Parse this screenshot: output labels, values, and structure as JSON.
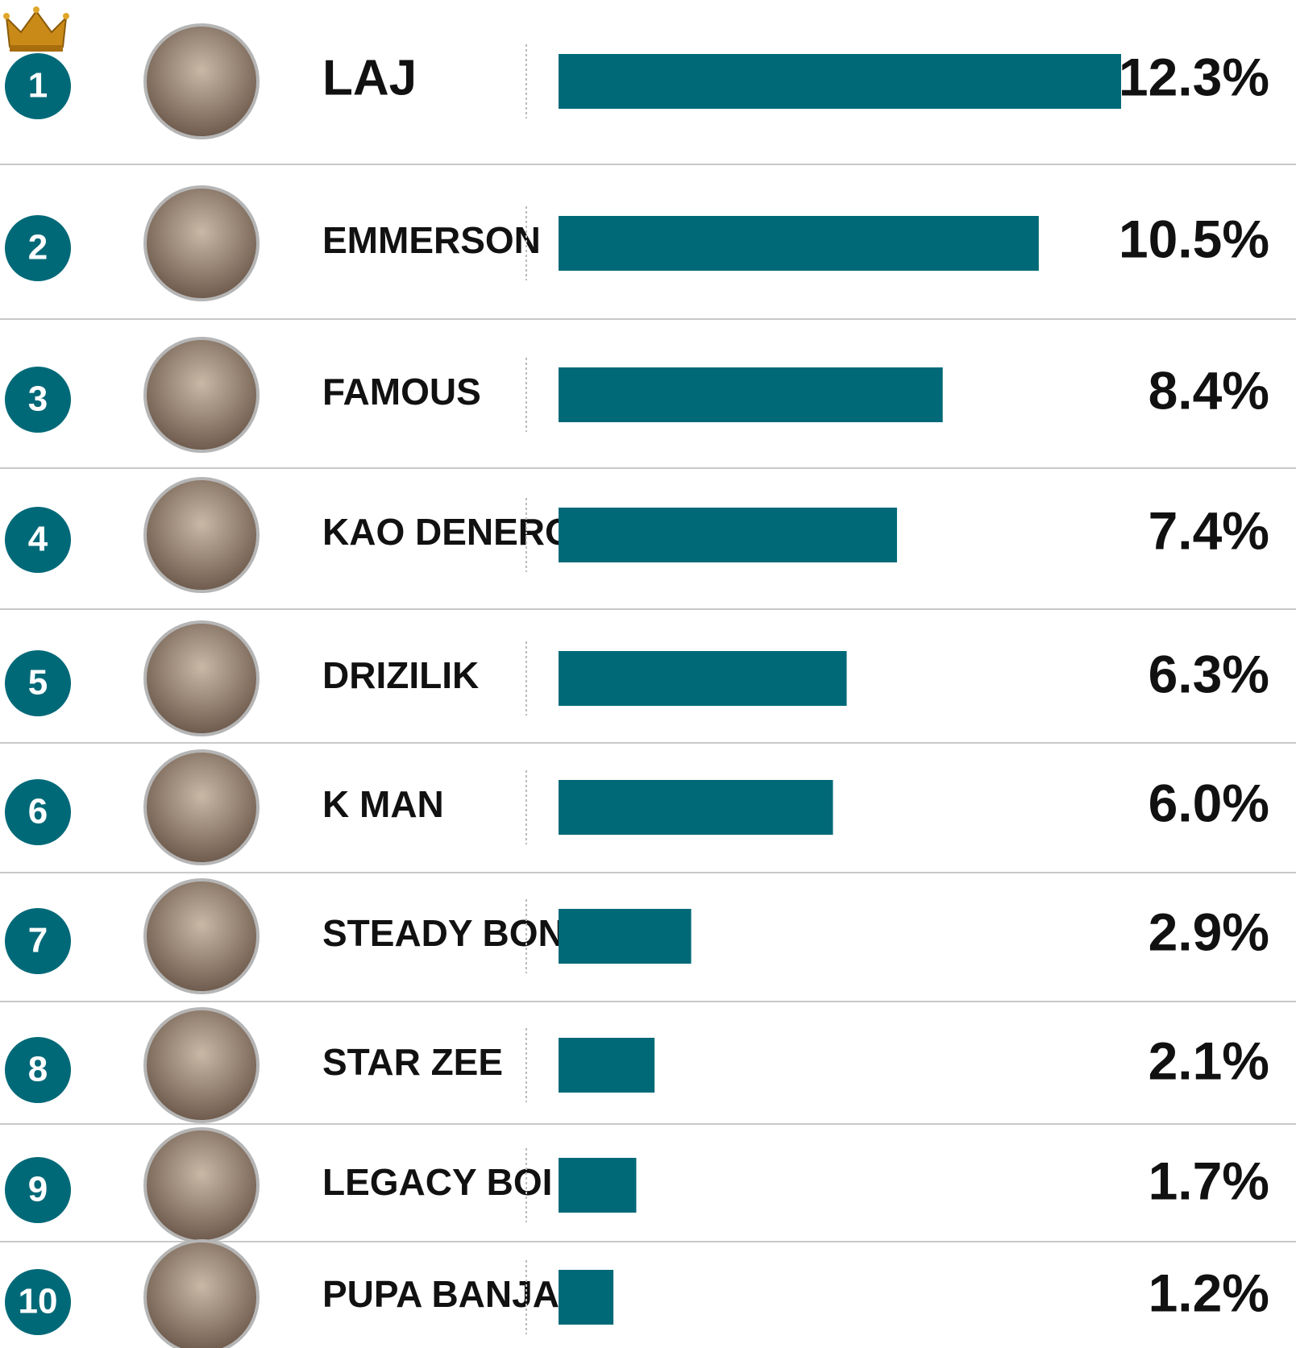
{
  "chart_data": {
    "type": "bar",
    "orientation": "horizontal",
    "ranks": [
      1,
      2,
      3,
      4,
      5,
      6,
      7,
      8,
      9,
      10
    ],
    "categories": [
      "LAJ",
      "EMMERSON",
      "FAMOUS",
      "KAO DENERO",
      "DRIZILIK",
      "K MAN",
      "STEADY BONGO",
      "STAR ZEE",
      "LEGACY BOI",
      "PUPA BANJA"
    ],
    "values": [
      12.3,
      10.5,
      8.4,
      7.4,
      6.3,
      6.0,
      2.9,
      2.1,
      1.7,
      1.2
    ],
    "value_labels": [
      "12.3%",
      "10.5%",
      "8.4%",
      "7.4%",
      "6.3%",
      "6.0%",
      "2.9%",
      "2.1%",
      "1.7%",
      "1.2%"
    ],
    "color": "#006978"
  }
}
